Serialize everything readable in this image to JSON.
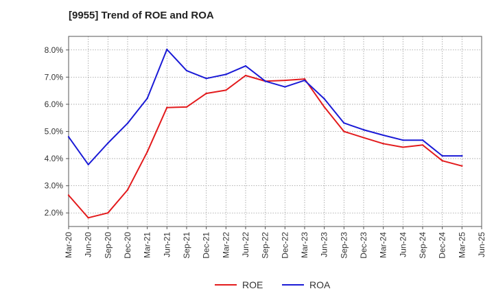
{
  "chart_data": {
    "type": "line",
    "title": "[9955]  Trend of ROE and ROA",
    "xlabel": "",
    "ylabel": "",
    "x": [
      "Mar-20",
      "Jun-20",
      "Sep-20",
      "Dec-20",
      "Mar-21",
      "Jun-21",
      "Sep-21",
      "Dec-21",
      "Mar-22",
      "Jun-22",
      "Sep-22",
      "Dec-22",
      "Mar-23",
      "Jun-23",
      "Sep-23",
      "Dec-23",
      "Mar-24",
      "Jun-24",
      "Sep-24",
      "Dec-24",
      "Mar-25",
      "Jun-25"
    ],
    "ylim": [
      1.5,
      8.5
    ],
    "yticks": [
      "2.0%",
      "3.0%",
      "4.0%",
      "5.0%",
      "6.0%",
      "7.0%",
      "8.0%"
    ],
    "grid": true,
    "legend_position": "bottom-center",
    "series": [
      {
        "name": "ROE",
        "color": "#e31a1c",
        "values": [
          2.65,
          1.82,
          2.0,
          2.85,
          4.25,
          5.88,
          5.9,
          6.4,
          6.52,
          7.06,
          6.85,
          6.88,
          6.93,
          5.9,
          5.0,
          4.77,
          4.55,
          4.42,
          4.5,
          3.92,
          3.73,
          null
        ]
      },
      {
        "name": "ROA",
        "color": "#1a1ad6",
        "values": [
          4.8,
          3.78,
          4.57,
          5.3,
          6.22,
          8.02,
          7.24,
          6.95,
          7.1,
          7.41,
          6.85,
          6.64,
          6.88,
          6.2,
          5.31,
          5.06,
          4.86,
          4.68,
          4.68,
          4.1,
          4.1,
          null
        ]
      }
    ]
  }
}
